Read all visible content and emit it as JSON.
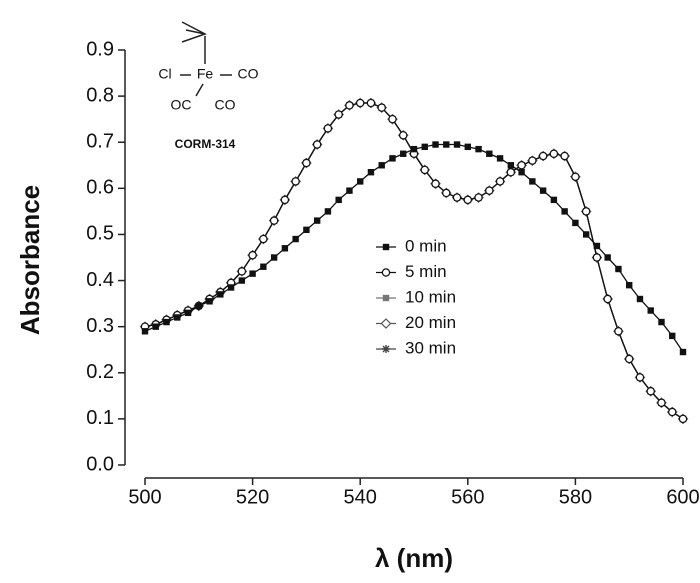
{
  "chart_data": {
    "type": "line",
    "xlabel": "λ (nm)",
    "ylabel": "Absorbance",
    "annotations": [
      "Cl",
      "Fe",
      "CO",
      "OC",
      "CO",
      "CORM-314"
    ],
    "x": [
      500,
      502,
      504,
      506,
      508,
      510,
      512,
      514,
      516,
      518,
      520,
      522,
      524,
      526,
      528,
      530,
      532,
      534,
      536,
      538,
      540,
      542,
      544,
      546,
      548,
      550,
      552,
      554,
      556,
      558,
      560,
      562,
      564,
      566,
      568,
      570,
      572,
      574,
      576,
      578,
      580,
      582,
      584,
      586,
      588,
      590,
      592,
      594,
      596,
      598,
      600
    ],
    "series": [
      {
        "name": "0 min",
        "color": "#111111",
        "marker": "square-filled",
        "values": [
          0.29,
          0.3,
          0.31,
          0.32,
          0.33,
          0.345,
          0.355,
          0.37,
          0.385,
          0.4,
          0.415,
          0.43,
          0.45,
          0.47,
          0.49,
          0.51,
          0.53,
          0.55,
          0.575,
          0.595,
          0.615,
          0.635,
          0.65,
          0.665,
          0.675,
          0.685,
          0.69,
          0.695,
          0.695,
          0.695,
          0.69,
          0.685,
          0.675,
          0.665,
          0.65,
          0.635,
          0.615,
          0.595,
          0.575,
          0.55,
          0.525,
          0.5,
          0.475,
          0.45,
          0.425,
          0.39,
          0.36,
          0.335,
          0.31,
          0.28,
          0.245
        ]
      },
      {
        "name": "5 min",
        "color": "#111111",
        "marker": "circle-open",
        "values": [
          0.3,
          0.305,
          0.315,
          0.325,
          0.335,
          0.345,
          0.36,
          0.375,
          0.395,
          0.42,
          0.455,
          0.49,
          0.53,
          0.575,
          0.615,
          0.655,
          0.695,
          0.73,
          0.76,
          0.78,
          0.785,
          0.785,
          0.775,
          0.75,
          0.715,
          0.675,
          0.64,
          0.61,
          0.59,
          0.58,
          0.575,
          0.58,
          0.595,
          0.615,
          0.635,
          0.65,
          0.66,
          0.67,
          0.675,
          0.67,
          0.625,
          0.55,
          0.45,
          0.36,
          0.29,
          0.23,
          0.19,
          0.16,
          0.135,
          0.115,
          0.1
        ]
      },
      {
        "name": "10 min",
        "color": "#777777",
        "marker": "square-filled",
        "values": [
          0.3,
          0.305,
          0.315,
          0.325,
          0.335,
          0.345,
          0.36,
          0.375,
          0.395,
          0.42,
          0.455,
          0.49,
          0.53,
          0.575,
          0.615,
          0.655,
          0.695,
          0.73,
          0.76,
          0.78,
          0.785,
          0.785,
          0.775,
          0.75,
          0.715,
          0.675,
          0.64,
          0.61,
          0.59,
          0.58,
          0.575,
          0.58,
          0.595,
          0.615,
          0.635,
          0.65,
          0.66,
          0.67,
          0.675,
          0.67,
          0.625,
          0.55,
          0.45,
          0.36,
          0.29,
          0.23,
          0.19,
          0.16,
          0.135,
          0.115,
          0.1
        ]
      },
      {
        "name": "20 min",
        "color": "#555555",
        "marker": "diamond-open",
        "values": [
          0.3,
          0.305,
          0.315,
          0.325,
          0.335,
          0.345,
          0.36,
          0.375,
          0.395,
          0.42,
          0.455,
          0.49,
          0.53,
          0.575,
          0.615,
          0.655,
          0.695,
          0.73,
          0.76,
          0.78,
          0.785,
          0.785,
          0.775,
          0.75,
          0.715,
          0.675,
          0.64,
          0.61,
          0.59,
          0.58,
          0.575,
          0.58,
          0.595,
          0.615,
          0.635,
          0.65,
          0.66,
          0.67,
          0.675,
          0.67,
          0.625,
          0.55,
          0.45,
          0.36,
          0.29,
          0.23,
          0.19,
          0.16,
          0.135,
          0.115,
          0.1
        ]
      },
      {
        "name": "30 min",
        "color": "#444444",
        "marker": "star",
        "values": [
          0.3,
          0.305,
          0.315,
          0.325,
          0.335,
          0.345,
          0.36,
          0.375,
          0.395,
          0.42,
          0.455,
          0.49,
          0.53,
          0.575,
          0.615,
          0.655,
          0.695,
          0.73,
          0.76,
          0.78,
          0.785,
          0.785,
          0.775,
          0.75,
          0.715,
          0.675,
          0.64,
          0.61,
          0.59,
          0.58,
          0.575,
          0.58,
          0.595,
          0.615,
          0.635,
          0.65,
          0.66,
          0.67,
          0.675,
          0.67,
          0.625,
          0.55,
          0.45,
          0.36,
          0.29,
          0.23,
          0.19,
          0.16,
          0.135,
          0.115,
          0.1
        ]
      }
    ],
    "xlim": [
      500,
      600
    ],
    "xticks": [
      500,
      520,
      540,
      560,
      580,
      600
    ],
    "ylim": [
      0,
      0.9
    ],
    "yticks": [
      {
        "value": 0,
        "label": "0.0"
      },
      0.1,
      0.2,
      0.3,
      0.4,
      0.5,
      0.6,
      0.7,
      0.8,
      0.9
    ],
    "legend": true
  }
}
